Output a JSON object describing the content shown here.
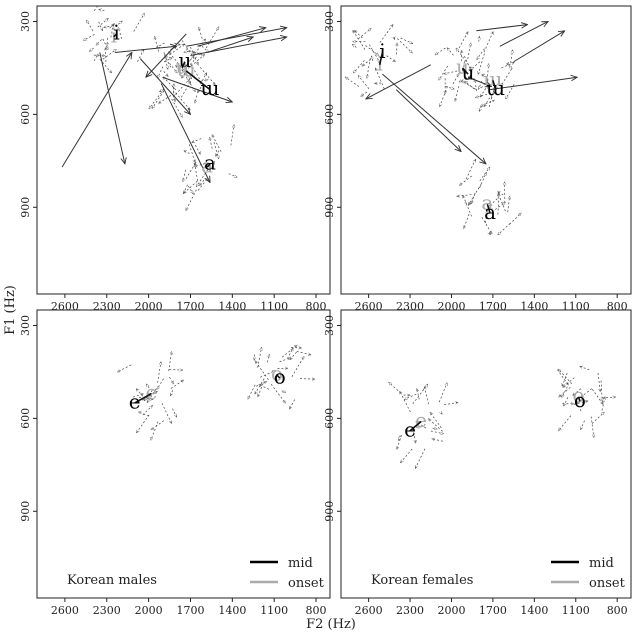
{
  "figure": {
    "xlabel": "F2 (Hz)",
    "ylabel": "F1 (Hz)",
    "legend": {
      "mid_label": "mid",
      "onset_label": "onset",
      "mid_color": "#000000",
      "onset_color": "#aaaaaa"
    }
  },
  "chart_data": [
    {
      "type": "scatter",
      "panel": "top-left",
      "label": "",
      "x_reversed": true,
      "y_reversed": true,
      "xlim": [
        2800,
        700
      ],
      "ylim": [
        250,
        1180
      ],
      "x_ticks": [
        2600,
        2300,
        2000,
        1700,
        1400,
        1100,
        800
      ],
      "y_ticks": [
        300,
        600,
        900
      ],
      "show_xticks": true,
      "show_yticks": true,
      "vowels": [
        {
          "symbol": "i",
          "onset": [
            2250,
            350
          ],
          "mid": [
            2230,
            340
          ]
        },
        {
          "symbol": "u",
          "onset": [
            1760,
            450
          ],
          "mid": [
            1740,
            430
          ]
        },
        {
          "symbol": "ɯ",
          "onset": [
            1730,
            460
          ],
          "mid": [
            1560,
            520
          ]
        },
        {
          "symbol": "a",
          "onset": [
            1580,
            770
          ],
          "mid": [
            1560,
            760
          ]
        }
      ],
      "trajectories": [
        {
          "from": [
            2350,
            400
          ],
          "to": [
            2170,
            760
          ]
        },
        {
          "from": [
            2240,
            400
          ],
          "to": [
            1800,
            380
          ]
        },
        {
          "from": [
            1730,
            380
          ],
          "to": [
            1010,
            320
          ]
        },
        {
          "from": [
            1700,
            410
          ],
          "to": [
            1010,
            350
          ]
        },
        {
          "from": [
            1900,
            480
          ],
          "to": [
            1400,
            560
          ]
        },
        {
          "from": [
            2060,
            420
          ],
          "to": [
            1700,
            600
          ]
        },
        {
          "from": [
            1730,
            340
          ],
          "to": [
            2020,
            480
          ]
        },
        {
          "from": [
            1910,
            500
          ],
          "to": [
            1560,
            820
          ]
        },
        {
          "from": [
            1580,
            400
          ],
          "to": [
            1250,
            350
          ]
        },
        {
          "from": [
            2620,
            770
          ],
          "to": [
            2120,
            400
          ]
        },
        {
          "from": [
            1650,
            380
          ],
          "to": [
            1160,
            320
          ]
        }
      ]
    },
    {
      "type": "scatter",
      "panel": "top-right",
      "label": "",
      "x_reversed": true,
      "y_reversed": true,
      "xlim": [
        2800,
        700
      ],
      "ylim": [
        250,
        1180
      ],
      "x_ticks": [
        2600,
        2300,
        2000,
        1700,
        1400,
        1100,
        800
      ],
      "y_ticks": [
        300,
        600,
        900
      ],
      "show_xticks": true,
      "show_yticks": true,
      "vowels": [
        {
          "symbol": "i",
          "onset": [
            2520,
            440
          ],
          "mid": [
            2500,
            400
          ]
        },
        {
          "symbol": "u",
          "onset": [
            1920,
            450
          ],
          "mid": [
            1880,
            470
          ]
        },
        {
          "symbol": "ɯ",
          "onset": [
            1700,
            490
          ],
          "mid": [
            1680,
            520
          ]
        },
        {
          "symbol": "a",
          "onset": [
            1740,
            890
          ],
          "mid": [
            1720,
            920
          ]
        }
      ],
      "trajectories": [
        {
          "from": [
            1720,
            520
          ],
          "to": [
            1090,
            480
          ]
        },
        {
          "from": [
            1880,
            480
          ],
          "to": [
            1710,
            510
          ]
        },
        {
          "from": [
            2500,
            470
          ],
          "to": [
            1750,
            760
          ]
        },
        {
          "from": [
            2400,
            520
          ],
          "to": [
            1930,
            720
          ]
        },
        {
          "from": [
            2150,
            440
          ],
          "to": [
            2620,
            550
          ]
        },
        {
          "from": [
            1820,
            330
          ],
          "to": [
            1450,
            310
          ]
        },
        {
          "from": [
            1650,
            380
          ],
          "to": [
            1300,
            300
          ]
        },
        {
          "from": [
            1550,
            430
          ],
          "to": [
            1180,
            330
          ]
        }
      ]
    },
    {
      "type": "scatter",
      "panel": "bottom-left",
      "label": "Korean males",
      "x_reversed": true,
      "y_reversed": true,
      "xlim": [
        2800,
        700
      ],
      "ylim": [
        250,
        1180
      ],
      "x_ticks": [
        2600,
        2300,
        2000,
        1700,
        1400,
        1100,
        800
      ],
      "y_ticks": [
        300,
        600,
        900
      ],
      "show_xticks": true,
      "show_yticks": true,
      "vowels": [
        {
          "symbol": "e",
          "onset": [
            1980,
            520
          ],
          "mid": [
            2100,
            550
          ]
        },
        {
          "symbol": "o",
          "onset": [
            1080,
            460
          ],
          "mid": [
            1060,
            470
          ]
        }
      ],
      "trajectories": []
    },
    {
      "type": "scatter",
      "panel": "bottom-right",
      "label": "Korean females",
      "x_reversed": true,
      "y_reversed": true,
      "xlim": [
        2800,
        700
      ],
      "ylim": [
        250,
        1180
      ],
      "x_ticks": [
        2600,
        2300,
        2000,
        1700,
        1400,
        1100,
        800
      ],
      "y_ticks": [
        300,
        600,
        900
      ],
      "show_xticks": true,
      "show_yticks": true,
      "vowels": [
        {
          "symbol": "e",
          "onset": [
            2220,
            610
          ],
          "mid": [
            2300,
            640
          ]
        },
        {
          "symbol": "o",
          "onset": [
            1080,
            530
          ],
          "mid": [
            1070,
            545
          ]
        }
      ],
      "trajectories": []
    }
  ]
}
